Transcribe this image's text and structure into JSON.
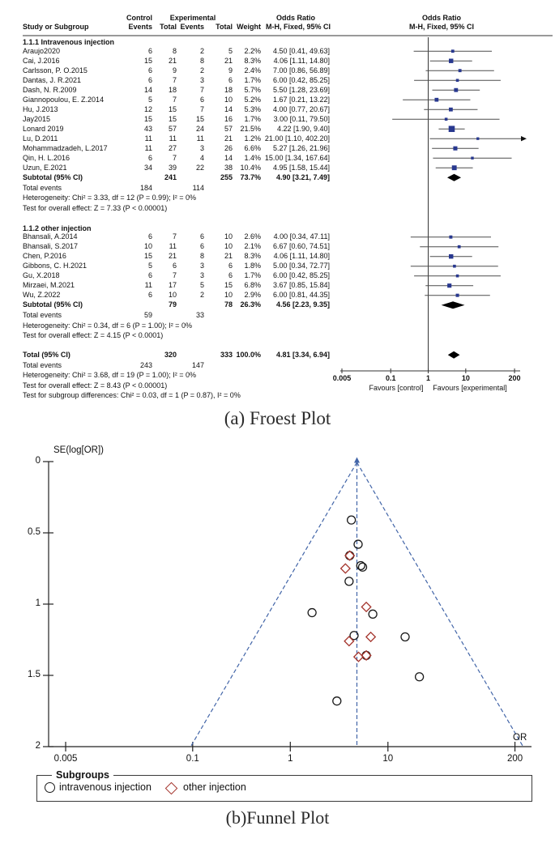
{
  "page": {
    "caption_a": "(a) Froest Plot",
    "caption_b": "(b)Funnel Plot"
  },
  "colors": {
    "study_square": "#28388f",
    "pooled_diamond": "#000000",
    "ci_line": "#4d4d4d",
    "funnel_dash_blue": "#4265a8",
    "other_injection_red": "#a4342c",
    "axis": "#333333"
  },
  "chart_data": [
    {
      "type": "forest",
      "effect_measure": "Odds Ratio, M-H, Fixed, 95% CI",
      "x_scale": "log",
      "x_ticks": [
        "0.005",
        "0.1",
        "1",
        "10",
        "200"
      ],
      "favours_left": "Favours [control]",
      "favours_right": "Favours [experimental]",
      "header": {
        "group_control": "Control",
        "group_experimental": "Experimental",
        "study": "Study or Subgroup",
        "events": "Events",
        "total": "Total",
        "weight": "Weight",
        "or_title": "Odds Ratio",
        "or_sub": "M-H, Fixed, 95% CI"
      },
      "groups": [
        {
          "label": "1.1.1 Intravenous injection",
          "studies": [
            {
              "name": "Araujo2020",
              "ce": "6",
              "ct": "8",
              "ee": "2",
              "et": "5",
              "w": "2.2%",
              "wn": 2.2,
              "or": 4.5,
              "lo": 0.41,
              "hi": 49.63,
              "ci": "4.50 [0.41, 49.63]"
            },
            {
              "name": "Cai, J.2016",
              "ce": "15",
              "ct": "21",
              "ee": "8",
              "et": "21",
              "w": "8.3%",
              "wn": 8.3,
              "or": 4.06,
              "lo": 1.11,
              "hi": 14.8,
              "ci": "4.06 [1.11, 14.80]"
            },
            {
              "name": "Carlsson, P. O.2015",
              "ce": "6",
              "ct": "9",
              "ee": "2",
              "et": "9",
              "w": "2.4%",
              "wn": 2.4,
              "or": 7.0,
              "lo": 0.86,
              "hi": 56.89,
              "ci": "7.00 [0.86, 56.89]"
            },
            {
              "name": "Dantas, J. R.2021",
              "ce": "6",
              "ct": "7",
              "ee": "3",
              "et": "6",
              "w": "1.7%",
              "wn": 1.7,
              "or": 6.0,
              "lo": 0.42,
              "hi": 85.25,
              "ci": "6.00 [0.42, 85.25]"
            },
            {
              "name": "Dash, N. R.2009",
              "ce": "14",
              "ct": "18",
              "ee": "7",
              "et": "18",
              "w": "5.7%",
              "wn": 5.7,
              "or": 5.5,
              "lo": 1.28,
              "hi": 23.69,
              "ci": "5.50 [1.28, 23.69]"
            },
            {
              "name": "Giannopoulou, E. Z.2014",
              "ce": "5",
              "ct": "7",
              "ee": "6",
              "et": "10",
              "w": "5.2%",
              "wn": 5.2,
              "or": 1.67,
              "lo": 0.21,
              "hi": 13.22,
              "ci": "1.67 [0.21, 13.22]"
            },
            {
              "name": "Hu, J.2013",
              "ce": "12",
              "ct": "15",
              "ee": "7",
              "et": "14",
              "w": "5.3%",
              "wn": 5.3,
              "or": 4.0,
              "lo": 0.77,
              "hi": 20.67,
              "ci": "4.00 [0.77, 20.67]"
            },
            {
              "name": "Jay2015",
              "ce": "15",
              "ct": "15",
              "ee": "15",
              "et": "16",
              "w": "1.7%",
              "wn": 1.7,
              "or": 3.0,
              "lo": 0.11,
              "hi": 79.5,
              "ci": "3.00 [0.11, 79.50]"
            },
            {
              "name": "Lonard 2019",
              "ce": "43",
              "ct": "57",
              "ee": "24",
              "et": "57",
              "w": "21.5%",
              "wn": 21.5,
              "or": 4.22,
              "lo": 1.9,
              "hi": 9.4,
              "ci": "4.22 [1.90, 9.40]"
            },
            {
              "name": "Lu, D.2011",
              "ce": "11",
              "ct": "11",
              "ee": "11",
              "et": "21",
              "w": "1.2%",
              "wn": 1.2,
              "or": 21.0,
              "lo": 1.1,
              "hi": 402.2,
              "ci": "21.00 [1.10, 402.20]"
            },
            {
              "name": "Mohammadzadeh, L.2017",
              "ce": "11",
              "ct": "27",
              "ee": "3",
              "et": "26",
              "w": "6.6%",
              "wn": 6.6,
              "or": 5.27,
              "lo": 1.26,
              "hi": 21.96,
              "ci": "5.27 [1.26, 21.96]"
            },
            {
              "name": "Qin, H. L.2016",
              "ce": "6",
              "ct": "7",
              "ee": "4",
              "et": "14",
              "w": "1.4%",
              "wn": 1.4,
              "or": 15.0,
              "lo": 1.34,
              "hi": 167.64,
              "ci": "15.00 [1.34, 167.64]"
            },
            {
              "name": "Uzun, E.2021",
              "ce": "34",
              "ct": "39",
              "ee": "22",
              "et": "38",
              "w": "10.4%",
              "wn": 10.4,
              "or": 4.95,
              "lo": 1.58,
              "hi": 15.44,
              "ci": "4.95 [1.58, 15.44]"
            }
          ],
          "subtotal": {
            "label": "Subtotal (95% CI)",
            "ct": "241",
            "et": "255",
            "w": "73.7%",
            "wn": 73.7,
            "or": 4.9,
            "lo": 3.21,
            "hi": 7.49,
            "ci": "4.90 [3.21, 7.49]"
          },
          "total_events": {
            "label": "Total events",
            "ce": "184",
            "ee": "114"
          },
          "heterogeneity": "Heterogeneity: Chi² = 3.33, df = 12 (P = 0.99); I² = 0%",
          "overall_effect": "Test for overall effect: Z = 7.33 (P < 0.00001)"
        },
        {
          "label": "1.1.2 other injection",
          "studies": [
            {
              "name": "Bhansali, A.2014",
              "ce": "6",
              "ct": "7",
              "ee": "6",
              "et": "10",
              "w": "2.6%",
              "wn": 2.6,
              "or": 4.0,
              "lo": 0.34,
              "hi": 47.11,
              "ci": "4.00 [0.34, 47.11]"
            },
            {
              "name": "Bhansali, S.2017",
              "ce": "10",
              "ct": "11",
              "ee": "6",
              "et": "10",
              "w": "2.1%",
              "wn": 2.1,
              "or": 6.67,
              "lo": 0.6,
              "hi": 74.51,
              "ci": "6.67 [0.60, 74.51]"
            },
            {
              "name": "Chen, P.2016",
              "ce": "15",
              "ct": "21",
              "ee": "8",
              "et": "21",
              "w": "8.3%",
              "wn": 8.3,
              "or": 4.06,
              "lo": 1.11,
              "hi": 14.8,
              "ci": "4.06 [1.11, 14.80]"
            },
            {
              "name": "Gibbons, C. H.2021",
              "ce": "5",
              "ct": "6",
              "ee": "3",
              "et": "6",
              "w": "1.8%",
              "wn": 1.8,
              "or": 5.0,
              "lo": 0.34,
              "hi": 72.77,
              "ci": "5.00 [0.34, 72.77]"
            },
            {
              "name": "Gu, X.2018",
              "ce": "6",
              "ct": "7",
              "ee": "3",
              "et": "6",
              "w": "1.7%",
              "wn": 1.7,
              "or": 6.0,
              "lo": 0.42,
              "hi": 85.25,
              "ci": "6.00 [0.42, 85.25]"
            },
            {
              "name": "Mirzaei, M.2021",
              "ce": "11",
              "ct": "17",
              "ee": "5",
              "et": "15",
              "w": "6.8%",
              "wn": 6.8,
              "or": 3.67,
              "lo": 0.85,
              "hi": 15.84,
              "ci": "3.67 [0.85, 15.84]"
            },
            {
              "name": "Wu, Z.2022",
              "ce": "6",
              "ct": "10",
              "ee": "2",
              "et": "10",
              "w": "2.9%",
              "wn": 2.9,
              "or": 6.0,
              "lo": 0.81,
              "hi": 44.35,
              "ci": "6.00 [0.81, 44.35]"
            }
          ],
          "subtotal": {
            "label": "Subtotal (95% CI)",
            "ct": "79",
            "et": "78",
            "w": "26.3%",
            "wn": 26.3,
            "or": 4.56,
            "lo": 2.23,
            "hi": 9.35,
            "ci": "4.56 [2.23, 9.35]"
          },
          "total_events": {
            "label": "Total events",
            "ce": "59",
            "ee": "33"
          },
          "heterogeneity": "Heterogeneity: Chi² = 0.34, df = 6 (P = 1.00); I² = 0%",
          "overall_effect": "Test for overall effect: Z = 4.15 (P < 0.0001)"
        }
      ],
      "total": {
        "label": "Total (95% CI)",
        "ct": "320",
        "et": "333",
        "w": "100.0%",
        "wn": 100,
        "or": 4.81,
        "lo": 3.34,
        "hi": 6.94,
        "ci": "4.81 [3.34, 6.94]"
      },
      "total_events": {
        "label": "Total events",
        "ce": "243",
        "ee": "147"
      },
      "heterogeneity": "Heterogeneity: Chi² = 3.68, df = 19 (P = 1.00); I² = 0%",
      "overall_effect": "Test for overall effect: Z = 8.43 (P < 0.00001)",
      "subgroup_diff": "Test for subgroup differences: Chi² = 0.03, df = 1 (P = 0.87), I² = 0%"
    },
    {
      "type": "scatter",
      "title": "Funnel Plot",
      "ylabel": "SE(log[OR])",
      "xlabel": "OR",
      "x_scale": "log",
      "x_ticks": [
        "0.005",
        "0.1",
        "1",
        "10",
        "200"
      ],
      "y_ticks": [
        "0",
        "0.5",
        "1",
        "1.5",
        "2"
      ],
      "y_range": [
        0,
        2
      ],
      "center_or": 4.81,
      "legend_title": "Subgroups",
      "series": [
        {
          "name": "intravenous injection",
          "marker": "circle",
          "color": "#1a1a1a",
          "points": [
            {
              "or": 4.5,
              "se": 1.22
            },
            {
              "or": 4.06,
              "se": 0.66
            },
            {
              "or": 7.0,
              "se": 1.07
            },
            {
              "or": 6.0,
              "se": 1.36
            },
            {
              "or": 5.5,
              "se": 0.74
            },
            {
              "or": 1.67,
              "se": 1.06
            },
            {
              "or": 4.0,
              "se": 0.84
            },
            {
              "or": 3.0,
              "se": 1.68
            },
            {
              "or": 4.22,
              "se": 0.41
            },
            {
              "or": 21.0,
              "se": 1.51
            },
            {
              "or": 5.27,
              "se": 0.73
            },
            {
              "or": 15.0,
              "se": 1.23
            },
            {
              "or": 4.95,
              "se": 0.58
            }
          ]
        },
        {
          "name": "other injection",
          "marker": "diamond",
          "color": "#a4342c",
          "points": [
            {
              "or": 4.0,
              "se": 1.26
            },
            {
              "or": 6.67,
              "se": 1.23
            },
            {
              "or": 4.06,
              "se": 0.66
            },
            {
              "or": 5.0,
              "se": 1.37
            },
            {
              "or": 6.0,
              "se": 1.36
            },
            {
              "or": 3.67,
              "se": 0.75
            },
            {
              "or": 6.0,
              "se": 1.02
            }
          ]
        }
      ]
    }
  ]
}
